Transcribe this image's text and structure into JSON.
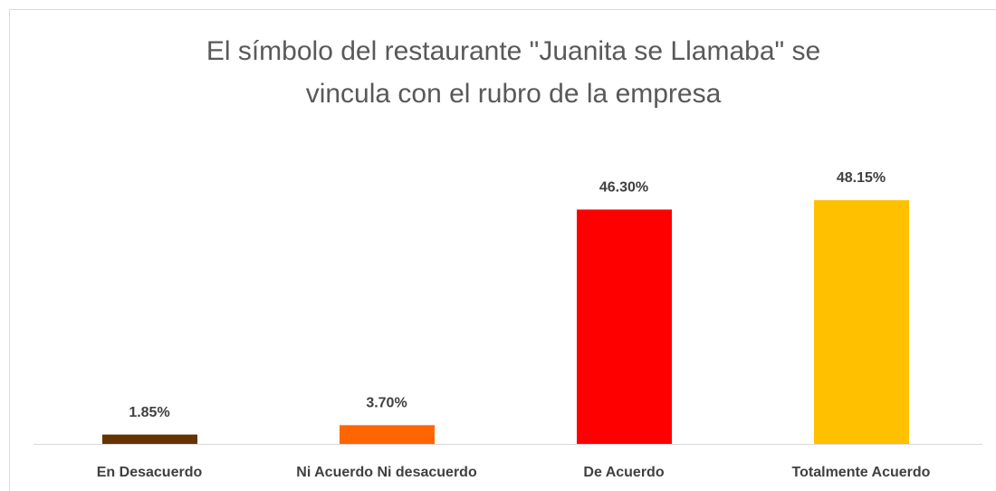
{
  "chart_data": {
    "type": "bar",
    "title": [
      "El símbolo del restaurante \"Juanita se Llamaba\" se",
      "vincula con el rubro de la empresa"
    ],
    "categories": [
      "En Desacuerdo",
      "Ni Acuerdo Ni desacuerdo",
      "De Acuerdo",
      "Totalmente Acuerdo"
    ],
    "values": [
      1.85,
      3.7,
      46.3,
      48.15
    ],
    "value_labels": [
      "1.85%",
      "3.70%",
      "46.30%",
      "48.15%"
    ],
    "colors": [
      "#663300",
      "#ff6600",
      "#ff0000",
      "#ffc000"
    ]
  }
}
